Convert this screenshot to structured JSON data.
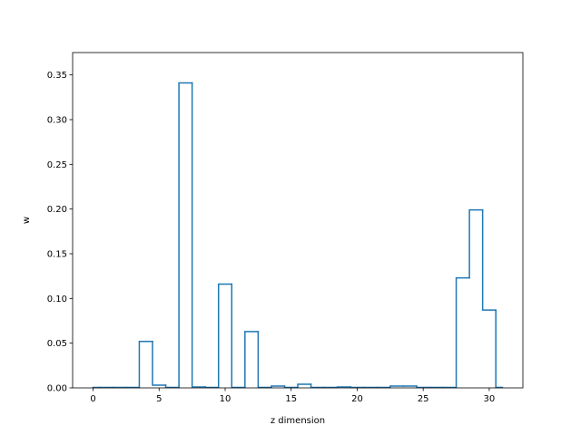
{
  "chart_data": {
    "type": "step",
    "xlabel": "z dimension",
    "ylabel": "w",
    "xlim": [
      -1.55,
      32.55
    ],
    "ylim": [
      0,
      0.375
    ],
    "xticks": [
      0,
      5,
      10,
      15,
      20,
      25,
      30
    ],
    "yticks": [
      0.0,
      0.05,
      0.1,
      0.15,
      0.2,
      0.25,
      0.3,
      0.35
    ],
    "xtick_labels": [
      "0",
      "5",
      "10",
      "15",
      "20",
      "25",
      "30"
    ],
    "ytick_labels": [
      "0.00",
      "0.05",
      "0.10",
      "0.15",
      "0.20",
      "0.25",
      "0.30",
      "0.35"
    ],
    "grid": false,
    "line_color": "#1f77b4",
    "x": [
      0,
      1,
      2,
      3,
      4,
      5,
      6,
      7,
      8,
      9,
      10,
      11,
      12,
      13,
      14,
      15,
      16,
      17,
      18,
      19,
      20,
      21,
      22,
      23,
      24,
      25,
      26,
      27,
      28,
      29,
      30,
      31
    ],
    "values": [
      0.0005,
      0.0005,
      0.0005,
      0.0005,
      0.052,
      0.003,
      0.0005,
      0.341,
      0.001,
      0.0005,
      0.116,
      0.0005,
      0.063,
      0.0005,
      0.002,
      0.0005,
      0.004,
      0.0005,
      0.0005,
      0.001,
      0.0005,
      0.0005,
      0.0005,
      0.002,
      0.002,
      0.0005,
      0.0005,
      0.0005,
      0.123,
      0.199,
      0.087,
      0.0005
    ]
  }
}
